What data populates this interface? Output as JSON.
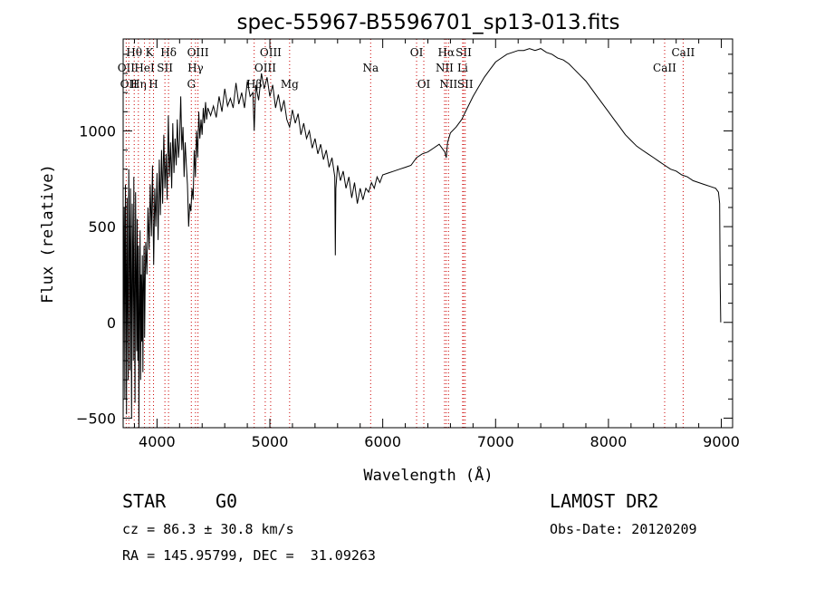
{
  "chart_data": {
    "type": "line",
    "title": "spec-55967-B5596701_sp13-013.fits",
    "xlabel": "Wavelength (Å)",
    "ylabel": "Flux (relative)",
    "xlim": [
      3700,
      9100
    ],
    "ylim": [
      -550,
      1480
    ],
    "xticks": [
      4000,
      5000,
      6000,
      7000,
      8000,
      9000
    ],
    "yticks": [
      -500,
      0,
      500,
      1000
    ],
    "grid": false,
    "line_color": "#000000",
    "marker_color": "#cc0000",
    "series": [
      {
        "points": [
          [
            3700,
            -510
          ],
          [
            3705,
            250
          ],
          [
            3710,
            600
          ],
          [
            3715,
            -400
          ],
          [
            3720,
            720
          ],
          [
            3725,
            300
          ],
          [
            3730,
            -480
          ],
          [
            3735,
            650
          ],
          [
            3740,
            100
          ],
          [
            3745,
            -300
          ],
          [
            3750,
            800
          ],
          [
            3755,
            420
          ],
          [
            3760,
            -250
          ],
          [
            3765,
            700
          ],
          [
            3770,
            200
          ],
          [
            3775,
            -500
          ],
          [
            3780,
            620
          ],
          [
            3785,
            380
          ],
          [
            3790,
            -200
          ],
          [
            3795,
            760
          ],
          [
            3800,
            60
          ],
          [
            3805,
            -420
          ],
          [
            3810,
            680
          ],
          [
            3815,
            300
          ],
          [
            3820,
            -150
          ],
          [
            3825,
            540
          ],
          [
            3830,
            -200
          ],
          [
            3835,
            400
          ],
          [
            3840,
            -550
          ],
          [
            3845,
            120
          ],
          [
            3850,
            480
          ],
          [
            3855,
            -300
          ],
          [
            3860,
            250
          ],
          [
            3865,
            -100
          ],
          [
            3870,
            350
          ],
          [
            3875,
            -260
          ],
          [
            3880,
            180
          ],
          [
            3885,
            400
          ],
          [
            3890,
            -80
          ],
          [
            3895,
            200
          ],
          [
            3900,
            420
          ],
          [
            3910,
            250
          ],
          [
            3920,
            600
          ],
          [
            3930,
            380
          ],
          [
            3940,
            720
          ],
          [
            3950,
            450
          ],
          [
            3960,
            820
          ],
          [
            3970,
            300
          ],
          [
            3980,
            700
          ],
          [
            3990,
            500
          ],
          [
            4000,
            780
          ],
          [
            4010,
            430
          ],
          [
            4020,
            850
          ],
          [
            4030,
            560
          ],
          [
            4040,
            900
          ],
          [
            4050,
            620
          ],
          [
            4060,
            980
          ],
          [
            4070,
            700
          ],
          [
            4080,
            880
          ],
          [
            4090,
            640
          ],
          [
            4100,
            1080
          ],
          [
            4110,
            760
          ],
          [
            4120,
            940
          ],
          [
            4130,
            700
          ],
          [
            4140,
            1040
          ],
          [
            4150,
            780
          ],
          [
            4160,
            960
          ],
          [
            4170,
            820
          ],
          [
            4180,
            1060
          ],
          [
            4190,
            860
          ],
          [
            4200,
            950
          ],
          [
            4210,
            1180
          ],
          [
            4220,
            900
          ],
          [
            4230,
            1020
          ],
          [
            4240,
            760
          ],
          [
            4250,
            940
          ],
          [
            4260,
            820
          ],
          [
            4270,
            720
          ],
          [
            4280,
            500
          ],
          [
            4290,
            620
          ],
          [
            4300,
            580
          ],
          [
            4310,
            700
          ],
          [
            4320,
            640
          ],
          [
            4330,
            900
          ],
          [
            4340,
            760
          ],
          [
            4350,
            1000
          ],
          [
            4360,
            860
          ],
          [
            4370,
            1100
          ],
          [
            4380,
            960
          ],
          [
            4390,
            1060
          ],
          [
            4400,
            980
          ],
          [
            4410,
            1120
          ],
          [
            4420,
            1040
          ],
          [
            4430,
            1150
          ],
          [
            4440,
            1060
          ],
          [
            4450,
            1120
          ],
          [
            4475,
            1080
          ],
          [
            4500,
            1130
          ],
          [
            4525,
            1070
          ],
          [
            4550,
            1180
          ],
          [
            4575,
            1100
          ],
          [
            4600,
            1220
          ],
          [
            4625,
            1130
          ],
          [
            4650,
            1170
          ],
          [
            4675,
            1120
          ],
          [
            4700,
            1250
          ],
          [
            4725,
            1140
          ],
          [
            4750,
            1200
          ],
          [
            4775,
            1120
          ],
          [
            4800,
            1260
          ],
          [
            4825,
            1180
          ],
          [
            4850,
            1200
          ],
          [
            4861,
            1000
          ],
          [
            4875,
            1240
          ],
          [
            4900,
            1160
          ],
          [
            4925,
            1300
          ],
          [
            4950,
            1220
          ],
          [
            4975,
            1280
          ],
          [
            5000,
            1180
          ],
          [
            5025,
            1240
          ],
          [
            5050,
            1120
          ],
          [
            5075,
            1190
          ],
          [
            5100,
            1100
          ],
          [
            5125,
            1160
          ],
          [
            5150,
            1060
          ],
          [
            5175,
            1020
          ],
          [
            5200,
            1110
          ],
          [
            5225,
            1040
          ],
          [
            5250,
            1090
          ],
          [
            5275,
            980
          ],
          [
            5300,
            1040
          ],
          [
            5325,
            960
          ],
          [
            5350,
            1000
          ],
          [
            5375,
            910
          ],
          [
            5400,
            960
          ],
          [
            5425,
            880
          ],
          [
            5450,
            930
          ],
          [
            5475,
            850
          ],
          [
            5500,
            900
          ],
          [
            5525,
            810
          ],
          [
            5550,
            860
          ],
          [
            5575,
            760
          ],
          [
            5580,
            350
          ],
          [
            5585,
            700
          ],
          [
            5600,
            820
          ],
          [
            5625,
            740
          ],
          [
            5650,
            790
          ],
          [
            5675,
            700
          ],
          [
            5700,
            760
          ],
          [
            5725,
            650
          ],
          [
            5750,
            730
          ],
          [
            5775,
            620
          ],
          [
            5800,
            700
          ],
          [
            5825,
            640
          ],
          [
            5850,
            700
          ],
          [
            5875,
            680
          ],
          [
            5900,
            730
          ],
          [
            5925,
            700
          ],
          [
            5950,
            760
          ],
          [
            5975,
            730
          ],
          [
            6000,
            770
          ],
          [
            6050,
            780
          ],
          [
            6100,
            790
          ],
          [
            6150,
            800
          ],
          [
            6200,
            810
          ],
          [
            6250,
            820
          ],
          [
            6300,
            860
          ],
          [
            6350,
            880
          ],
          [
            6400,
            890
          ],
          [
            6450,
            910
          ],
          [
            6500,
            930
          ],
          [
            6550,
            890
          ],
          [
            6563,
            860
          ],
          [
            6575,
            940
          ],
          [
            6600,
            990
          ],
          [
            6650,
            1020
          ],
          [
            6700,
            1060
          ],
          [
            6750,
            1120
          ],
          [
            6800,
            1180
          ],
          [
            6850,
            1230
          ],
          [
            6900,
            1280
          ],
          [
            6950,
            1320
          ],
          [
            7000,
            1360
          ],
          [
            7050,
            1380
          ],
          [
            7100,
            1400
          ],
          [
            7150,
            1410
          ],
          [
            7200,
            1420
          ],
          [
            7250,
            1420
          ],
          [
            7300,
            1430
          ],
          [
            7350,
            1420
          ],
          [
            7400,
            1430
          ],
          [
            7450,
            1410
          ],
          [
            7500,
            1400
          ],
          [
            7550,
            1380
          ],
          [
            7600,
            1370
          ],
          [
            7650,
            1350
          ],
          [
            7700,
            1320
          ],
          [
            7750,
            1290
          ],
          [
            7800,
            1260
          ],
          [
            7850,
            1220
          ],
          [
            7900,
            1180
          ],
          [
            7950,
            1140
          ],
          [
            8000,
            1100
          ],
          [
            8050,
            1060
          ],
          [
            8100,
            1020
          ],
          [
            8150,
            980
          ],
          [
            8200,
            950
          ],
          [
            8250,
            920
          ],
          [
            8300,
            900
          ],
          [
            8350,
            880
          ],
          [
            8400,
            860
          ],
          [
            8450,
            840
          ],
          [
            8500,
            820
          ],
          [
            8550,
            800
          ],
          [
            8600,
            790
          ],
          [
            8650,
            770
          ],
          [
            8700,
            760
          ],
          [
            8750,
            740
          ],
          [
            8800,
            730
          ],
          [
            8850,
            720
          ],
          [
            8900,
            710
          ],
          [
            8950,
            700
          ],
          [
            8975,
            680
          ],
          [
            8985,
            620
          ],
          [
            8990,
            200
          ],
          [
            8995,
            0
          ]
        ]
      }
    ],
    "line_markers": [
      {
        "wl": 3727,
        "label": "OII",
        "row": 2
      },
      {
        "wl": 3750,
        "label": "OII",
        "row": 3
      },
      {
        "wl": 3798,
        "label": "Hθ",
        "row": 1
      },
      {
        "wl": 3835,
        "label": "Hη",
        "row": 3
      },
      {
        "wl": 3889,
        "label": "HeI",
        "row": 2
      },
      {
        "wl": 3934,
        "label": "K",
        "row": 1
      },
      {
        "wl": 3969,
        "label": "H",
        "row": 3
      },
      {
        "wl": 4070,
        "label": "SII",
        "row": 2
      },
      {
        "wl": 4102,
        "label": "Hδ",
        "row": 1
      },
      {
        "wl": 4304,
        "label": "G",
        "row": 3
      },
      {
        "wl": 4341,
        "label": "Hγ",
        "row": 2
      },
      {
        "wl": 4363,
        "label": "OIII",
        "row": 1
      },
      {
        "wl": 4861,
        "label": "Hβ",
        "row": 3
      },
      {
        "wl": 4959,
        "label": "OIII",
        "row": 2
      },
      {
        "wl": 5007,
        "label": "OIII",
        "row": 1
      },
      {
        "wl": 5175,
        "label": "Mg",
        "row": 3
      },
      {
        "wl": 5893,
        "label": "Na",
        "row": 2
      },
      {
        "wl": 6300,
        "label": "OI",
        "row": 1
      },
      {
        "wl": 6364,
        "label": "OI",
        "row": 3
      },
      {
        "wl": 6548,
        "label": "NII",
        "row": 2
      },
      {
        "wl": 6563,
        "label": "Hα",
        "row": 1
      },
      {
        "wl": 6583,
        "label": "NII",
        "row": 3
      },
      {
        "wl": 6708,
        "label": "Li",
        "row": 2
      },
      {
        "wl": 6717,
        "label": "SII",
        "row": 1
      },
      {
        "wl": 6731,
        "label": "SII",
        "row": 3
      },
      {
        "wl": 8498,
        "label": "CaII",
        "row": 2
      },
      {
        "wl": 8662,
        "label": "CaII",
        "row": 1
      }
    ]
  },
  "info": {
    "class_label": "STAR",
    "subclass": "G0",
    "survey": "LAMOST DR2",
    "redshift": "cz = 86.3 ± 30.8 km/s",
    "obs_date": "Obs-Date: 20120209",
    "coords": "RA = 145.95799, DEC =  31.09263"
  }
}
